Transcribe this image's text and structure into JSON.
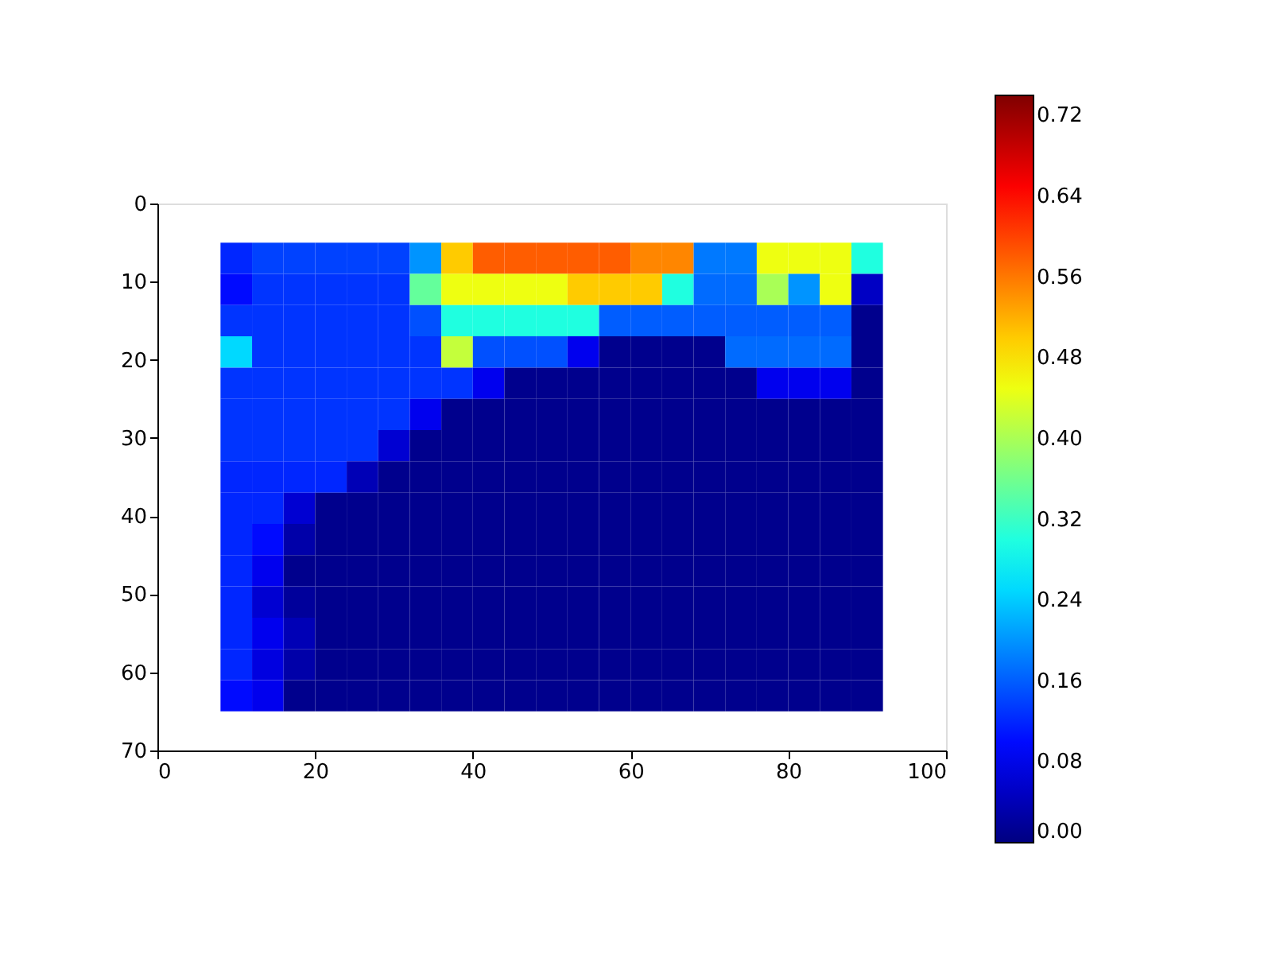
{
  "chart_data": {
    "type": "heatmap",
    "x": [
      10,
      14,
      18,
      22,
      26,
      30,
      34,
      38,
      42,
      46,
      50,
      54,
      58,
      62,
      66,
      70,
      74,
      78,
      82,
      86,
      90
    ],
    "y": [
      7,
      11,
      15,
      19,
      23,
      27,
      31,
      35,
      39,
      43,
      47,
      51,
      55,
      59,
      63
    ],
    "cells": [
      [
        0.12,
        0.14,
        0.14,
        0.14,
        0.14,
        0.14,
        0.2,
        0.5,
        0.58,
        0.58,
        0.58,
        0.58,
        0.58,
        0.55,
        0.55,
        0.18,
        0.18,
        0.45,
        0.45,
        0.45,
        0.3
      ],
      [
        0.1,
        0.13,
        0.13,
        0.13,
        0.13,
        0.13,
        0.35,
        0.45,
        0.45,
        0.45,
        0.45,
        0.5,
        0.5,
        0.5,
        0.3,
        0.17,
        0.17,
        0.4,
        0.2,
        0.45,
        0.05
      ],
      [
        0.13,
        0.13,
        0.13,
        0.13,
        0.13,
        0.13,
        0.15,
        0.3,
        0.3,
        0.3,
        0.3,
        0.3,
        0.16,
        0.16,
        0.16,
        0.16,
        0.16,
        0.16,
        0.16,
        0.16,
        0.01
      ],
      [
        0.25,
        0.13,
        0.13,
        0.13,
        0.13,
        0.13,
        0.13,
        0.42,
        0.15,
        0.15,
        0.15,
        0.08,
        0.01,
        0.01,
        0.01,
        0.01,
        0.17,
        0.17,
        0.17,
        0.17,
        0.01
      ],
      [
        0.13,
        0.13,
        0.13,
        0.13,
        0.13,
        0.13,
        0.13,
        0.13,
        0.08,
        0.01,
        0.01,
        0.01,
        0.01,
        0.01,
        0.01,
        0.01,
        0.01,
        0.08,
        0.08,
        0.08,
        0.01
      ],
      [
        0.13,
        0.13,
        0.13,
        0.13,
        0.13,
        0.13,
        0.08,
        0.01,
        0.01,
        0.01,
        0.01,
        0.01,
        0.01,
        0.01,
        0.01,
        0.01,
        0.01,
        0.01,
        0.01,
        0.01,
        0.01
      ],
      [
        0.13,
        0.13,
        0.13,
        0.13,
        0.13,
        0.06,
        0.01,
        0.01,
        0.01,
        0.01,
        0.01,
        0.01,
        0.01,
        0.01,
        0.01,
        0.01,
        0.01,
        0.01,
        0.01,
        0.01,
        0.01
      ],
      [
        0.12,
        0.12,
        0.12,
        0.12,
        0.04,
        0.01,
        0.01,
        0.01,
        0.01,
        0.01,
        0.01,
        0.01,
        0.01,
        0.01,
        0.01,
        0.01,
        0.01,
        0.01,
        0.01,
        0.01,
        0.01
      ],
      [
        0.12,
        0.12,
        0.06,
        0.01,
        0.01,
        0.01,
        0.01,
        0.01,
        0.01,
        0.01,
        0.01,
        0.01,
        0.01,
        0.01,
        0.01,
        0.01,
        0.01,
        0.01,
        0.01,
        0.01,
        0.01
      ],
      [
        0.12,
        0.1,
        0.03,
        0.01,
        0.01,
        0.01,
        0.01,
        0.01,
        0.01,
        0.01,
        0.01,
        0.01,
        0.01,
        0.01,
        0.01,
        0.01,
        0.01,
        0.01,
        0.01,
        0.01,
        0.01
      ],
      [
        0.12,
        0.08,
        0.01,
        0.01,
        0.01,
        0.01,
        0.01,
        0.01,
        0.01,
        0.01,
        0.01,
        0.01,
        0.01,
        0.01,
        0.01,
        0.01,
        0.01,
        0.01,
        0.01,
        0.01,
        0.01
      ],
      [
        0.12,
        0.06,
        0.02,
        0.01,
        0.01,
        0.01,
        0.01,
        0.01,
        0.01,
        0.01,
        0.01,
        0.01,
        0.01,
        0.01,
        0.01,
        0.01,
        0.01,
        0.01,
        0.01,
        0.01,
        0.01
      ],
      [
        0.12,
        0.08,
        0.04,
        0.01,
        0.01,
        0.01,
        0.01,
        0.01,
        0.01,
        0.01,
        0.01,
        0.01,
        0.01,
        0.01,
        0.01,
        0.01,
        0.01,
        0.01,
        0.01,
        0.01,
        0.01
      ],
      [
        0.12,
        0.07,
        0.03,
        0.01,
        0.01,
        0.01,
        0.01,
        0.01,
        0.01,
        0.01,
        0.01,
        0.01,
        0.01,
        0.01,
        0.01,
        0.01,
        0.01,
        0.01,
        0.01,
        0.01,
        0.01
      ],
      [
        0.1,
        0.08,
        0.01,
        0.01,
        0.01,
        0.01,
        0.01,
        0.01,
        0.01,
        0.01,
        0.01,
        0.01,
        0.01,
        0.01,
        0.01,
        0.01,
        0.01,
        0.01,
        0.01,
        0.01,
        0.01
      ]
    ],
    "xlim": [
      0,
      100
    ],
    "xticks": [
      0,
      20,
      40,
      60,
      80,
      100
    ],
    "ylim": [
      70,
      0
    ],
    "yticks": [
      0,
      10,
      20,
      30,
      40,
      50,
      60,
      70
    ],
    "clim": [
      0,
      0.74
    ],
    "cticks": [
      {
        "value": 0,
        "label": "0.00"
      },
      {
        "value": 0.08,
        "label": "0.08"
      },
      {
        "value": 0.16,
        "label": "0.16"
      },
      {
        "value": 0.24,
        "label": "0.24"
      },
      {
        "value": 0.32,
        "label": "0.32"
      },
      {
        "value": 0.4,
        "label": "0.40"
      },
      {
        "value": 0.48,
        "label": "0.48"
      },
      {
        "value": 0.56,
        "label": "0.56"
      },
      {
        "value": 0.64,
        "label": "0.64"
      },
      {
        "value": 0.72,
        "label": "0.72"
      }
    ],
    "grid": false
  }
}
